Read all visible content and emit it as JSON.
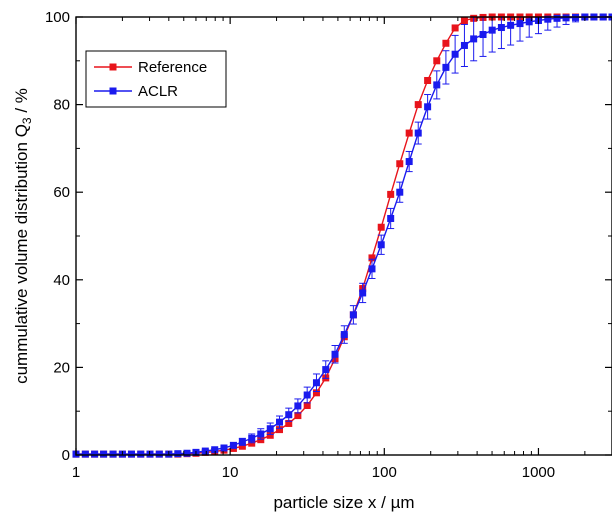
{
  "chart_data": {
    "type": "scatter",
    "title": "",
    "xlabel": "particle size x / µm",
    "ylabel_main": "cummulative volume distribution Q",
    "ylabel_sub": "3",
    "ylabel_suffix": " / %",
    "xscale": "log",
    "xlim": [
      1,
      3000
    ],
    "ylim": [
      0,
      100
    ],
    "x_ticks": [
      1,
      10,
      100,
      1000
    ],
    "x_tick_labels": [
      "1",
      "10",
      "100",
      "1000"
    ],
    "y_ticks": [
      0,
      20,
      40,
      60,
      80,
      100
    ],
    "y_tick_labels": [
      "0",
      "20",
      "40",
      "60",
      "80",
      "100"
    ],
    "grid": false,
    "legend_position": "top-left",
    "series": [
      {
        "name": "Reference",
        "color": "#e8141b",
        "points": [
          [
            1,
            0.2
          ],
          [
            1.15,
            0.2
          ],
          [
            1.32,
            0.2
          ],
          [
            1.51,
            0.2
          ],
          [
            1.74,
            0.2
          ],
          [
            2,
            0.2
          ],
          [
            2.29,
            0.2
          ],
          [
            2.63,
            0.2
          ],
          [
            3.02,
            0.2
          ],
          [
            3.47,
            0.2
          ],
          [
            4,
            0.2
          ],
          [
            4.58,
            0.2
          ],
          [
            5.25,
            0.3
          ],
          [
            6,
            0.4
          ],
          [
            6.9,
            0.6
          ],
          [
            7.94,
            0.8
          ],
          [
            9.12,
            1.1
          ],
          [
            10.5,
            1.5
          ],
          [
            12,
            2
          ],
          [
            13.8,
            2.7
          ],
          [
            15.8,
            3.5
          ],
          [
            18.2,
            4.5
          ],
          [
            20.9,
            5.8
          ],
          [
            24,
            7.2
          ],
          [
            27.5,
            9
          ],
          [
            31.6,
            11.3
          ],
          [
            36.3,
            14.2
          ],
          [
            41.7,
            17.6
          ],
          [
            47.9,
            22
          ],
          [
            55,
            27
          ],
          [
            63,
            32
          ],
          [
            72.4,
            38
          ],
          [
            83.2,
            45
          ],
          [
            95.5,
            52
          ],
          [
            110,
            59.5
          ],
          [
            126,
            66.5
          ],
          [
            145,
            73.5
          ],
          [
            166,
            80
          ],
          [
            191,
            85.5
          ],
          [
            219,
            90
          ],
          [
            251,
            94
          ],
          [
            288,
            97.5
          ],
          [
            331,
            99.2
          ],
          [
            380,
            99.7
          ],
          [
            437,
            99.9
          ],
          [
            501,
            100
          ],
          [
            575,
            100
          ],
          [
            660,
            100
          ],
          [
            759,
            100
          ],
          [
            871,
            100
          ],
          [
            1000,
            100
          ],
          [
            1150,
            100
          ],
          [
            1320,
            100
          ],
          [
            1510,
            100
          ],
          [
            1740,
            100
          ],
          [
            2000,
            100
          ],
          [
            2290,
            100
          ],
          [
            2630,
            100
          ],
          [
            3000,
            100
          ]
        ],
        "errors": [
          0,
          0,
          0,
          0,
          0,
          0,
          0,
          0,
          0,
          0,
          0,
          0,
          0,
          0,
          0,
          0,
          0,
          0,
          0,
          0,
          0,
          0,
          0,
          0,
          0,
          0,
          0,
          0,
          0,
          0,
          0,
          0,
          0,
          0,
          0,
          0,
          0,
          0,
          0,
          0,
          0,
          0,
          0,
          0,
          0,
          0,
          0,
          0,
          0,
          0,
          0,
          0,
          0,
          0,
          0,
          0,
          0,
          0,
          0
        ]
      },
      {
        "name": "ACLR",
        "color": "#1a1aee",
        "points": [
          [
            1,
            0.2
          ],
          [
            1.15,
            0.2
          ],
          [
            1.32,
            0.2
          ],
          [
            1.51,
            0.2
          ],
          [
            1.74,
            0.2
          ],
          [
            2,
            0.2
          ],
          [
            2.29,
            0.2
          ],
          [
            2.63,
            0.2
          ],
          [
            3.02,
            0.2
          ],
          [
            3.47,
            0.2
          ],
          [
            4,
            0.2
          ],
          [
            4.58,
            0.3
          ],
          [
            5.25,
            0.4
          ],
          [
            6,
            0.6
          ],
          [
            6.9,
            0.9
          ],
          [
            7.94,
            1.2
          ],
          [
            9.12,
            1.6
          ],
          [
            10.5,
            2.2
          ],
          [
            12,
            3
          ],
          [
            13.8,
            3.8
          ],
          [
            15.8,
            4.8
          ],
          [
            18.2,
            6
          ],
          [
            20.9,
            7.5
          ],
          [
            24,
            9.2
          ],
          [
            27.5,
            11.2
          ],
          [
            31.6,
            13.7
          ],
          [
            36.3,
            16.5
          ],
          [
            41.7,
            19.5
          ],
          [
            47.9,
            23
          ],
          [
            55,
            27.5
          ],
          [
            63,
            32
          ],
          [
            72.4,
            37
          ],
          [
            83.2,
            42.5
          ],
          [
            95.5,
            48
          ],
          [
            110,
            54
          ],
          [
            126,
            60
          ],
          [
            145,
            67
          ],
          [
            166,
            73.5
          ],
          [
            191,
            79.5
          ],
          [
            219,
            84.5
          ],
          [
            251,
            88.5
          ],
          [
            288,
            91.5
          ],
          [
            331,
            93.5
          ],
          [
            380,
            95
          ],
          [
            437,
            96
          ],
          [
            501,
            97
          ],
          [
            575,
            97.6
          ],
          [
            660,
            98.1
          ],
          [
            759,
            98.5
          ],
          [
            871,
            98.9
          ],
          [
            1000,
            99.2
          ],
          [
            1150,
            99.5
          ],
          [
            1320,
            99.7
          ],
          [
            1510,
            99.8
          ],
          [
            1740,
            99.9
          ],
          [
            2000,
            100
          ],
          [
            2290,
            100
          ],
          [
            2630,
            100
          ],
          [
            3000,
            100
          ]
        ],
        "errors": [
          0,
          0,
          0,
          0,
          0,
          0,
          0,
          0,
          0,
          0,
          0,
          0,
          0,
          0,
          0,
          0.3,
          0.4,
          0.6,
          0.8,
          1,
          1.2,
          1.3,
          1.4,
          1.5,
          1.6,
          1.8,
          2,
          2,
          2,
          2,
          2.1,
          2.2,
          2.2,
          2.2,
          2.3,
          2.3,
          2.3,
          2.5,
          2.8,
          3.2,
          3.8,
          4.3,
          4.8,
          5,
          5,
          5,
          4.8,
          4.5,
          4,
          3.5,
          3,
          2.5,
          2,
          1.5,
          1,
          0.5,
          0.3,
          0,
          0
        ]
      }
    ]
  }
}
